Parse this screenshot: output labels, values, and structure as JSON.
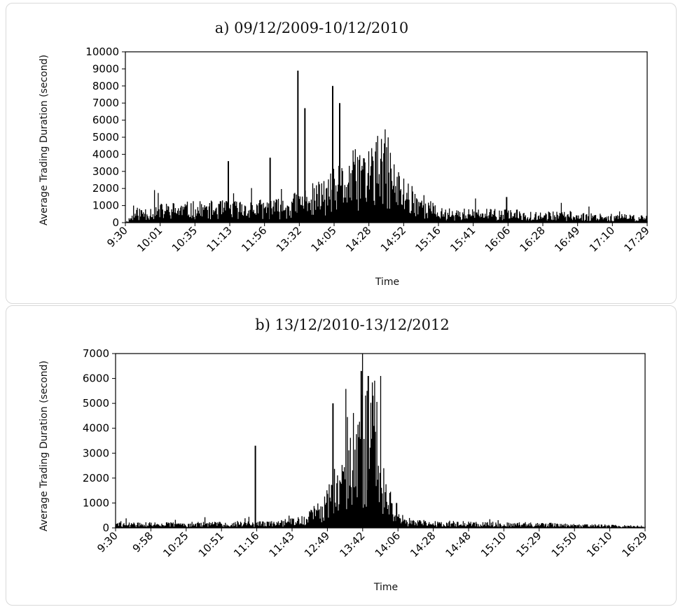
{
  "chart_data": [
    {
      "type": "line",
      "title": "a) 09/12/2009-10/12/2010",
      "xlabel": "Time",
      "ylabel": "Average Trading Duration (second)",
      "ylim": [
        0,
        10000
      ],
      "yticks": [
        0,
        1000,
        2000,
        3000,
        4000,
        5000,
        6000,
        7000,
        8000,
        9000,
        10000
      ],
      "xtick_labels": [
        "9:30",
        "10:01",
        "10:35",
        "11:13",
        "11:56",
        "13:32",
        "14:05",
        "14:28",
        "14:52",
        "15:16",
        "15:41",
        "16:06",
        "16:28",
        "16:49",
        "17:10",
        "17:29"
      ],
      "grid": false,
      "series": [
        {
          "color": "#000000",
          "spikes": [
            {
              "x_label": "11:13",
              "y": 3600
            },
            {
              "x_label": "11:56",
              "y": 3800
            },
            {
              "x_label": "13:32",
              "y": 8900
            },
            {
              "x_label": "13:32",
              "y": 6700
            },
            {
              "x_label": "14:05",
              "y": 8000
            },
            {
              "x_label": "14:05",
              "y": 7000
            },
            {
              "x_label": "16:06",
              "y": 1500
            }
          ]
        }
      ]
    },
    {
      "type": "line",
      "title": "b) 13/12/2010-13/12/2012",
      "xlabel": "Time",
      "ylabel": "Average Trading Duration (second)",
      "ylim": [
        0,
        7000
      ],
      "yticks": [
        0,
        1000,
        2000,
        3000,
        4000,
        5000,
        6000,
        7000
      ],
      "xtick_labels": [
        "9:30",
        "9:58",
        "10:25",
        "10:51",
        "11:16",
        "11:43",
        "12:49",
        "13:42",
        "14:06",
        "14:28",
        "14:48",
        "15:10",
        "15:29",
        "15:50",
        "16:10",
        "16:29"
      ],
      "grid": false,
      "series": [
        {
          "color": "#000000",
          "spikes": [
            {
              "x_label": "11:16",
              "y": 3300
            },
            {
              "x_label": "12:49",
              "y": 5000
            },
            {
              "x_label": "13:42",
              "y": 6300
            },
            {
              "x_label": "13:42",
              "y": 6100
            },
            {
              "x_label": "14:06",
              "y": 1000
            }
          ]
        }
      ]
    }
  ]
}
